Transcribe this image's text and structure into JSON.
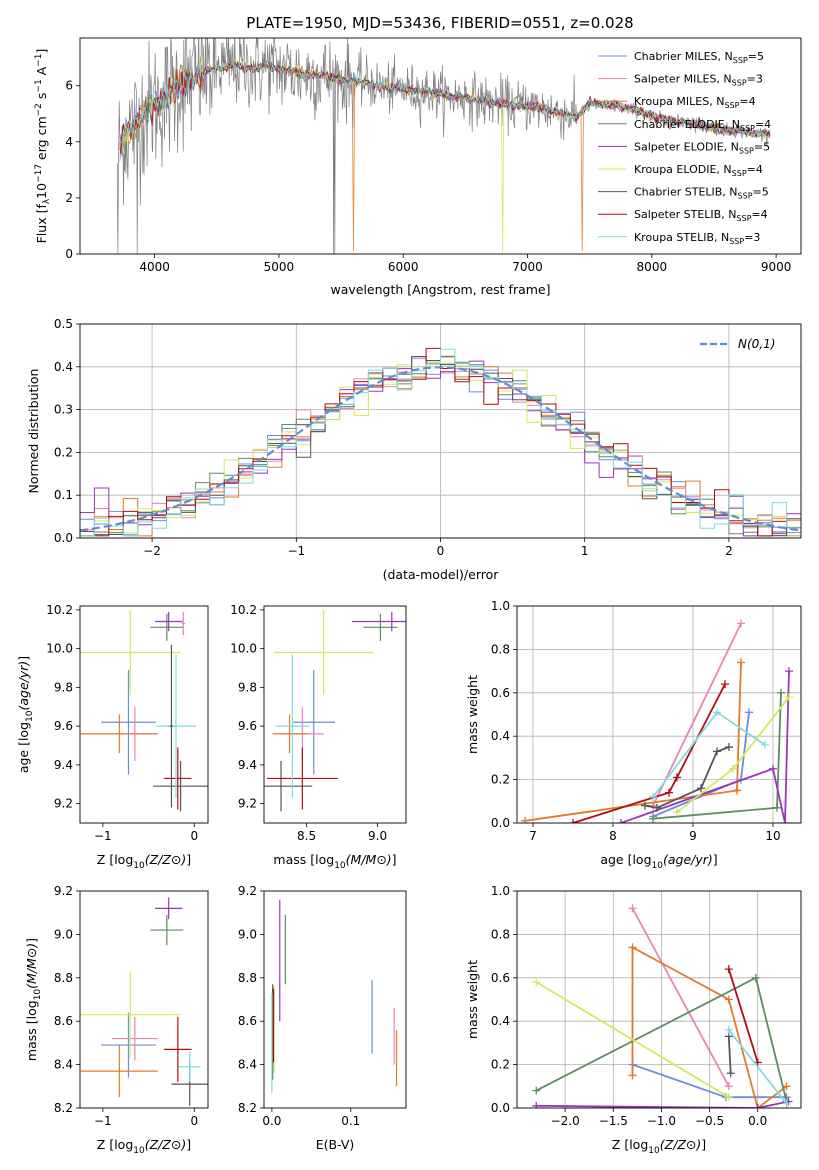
{
  "figure_title": "PLATE=1950, MJD=53436, FIBERID=0551, z=0.028",
  "colors": {
    "Chabrier MILES": "#6c8ed9",
    "Salpeter MILES": "#e585b9",
    "Kroupa MILES": "#e07b28",
    "Chabrier ELODIE": "#5e8c61",
    "Salpeter ELODIE": "#9b36b7",
    "Kroupa ELODIE": "#d3e95a",
    "Chabrier STELIB": "#555555",
    "Salpeter STELIB": "#b00d12",
    "Kroupa STELIB": "#7ddde0",
    "data": "#7f7f7f",
    "normal_curve": "#5b8ed6"
  },
  "chart_data": [
    {
      "type": "line",
      "panel": "spectrum",
      "title": "PLATE=1950, MJD=53436, FIBERID=0551, z=0.028",
      "xlabel": "wavelength [Angstrom, rest frame]",
      "ylabel": "Flux [f_λ 10^-17 erg cm^-2 s^-1 A^-1]",
      "xlim": [
        3400,
        9200
      ],
      "ylim": [
        0,
        7.7
      ],
      "xticks": [
        4000,
        5000,
        6000,
        7000,
        8000,
        9000
      ],
      "yticks": [
        0,
        2,
        4,
        6
      ],
      "legend": [
        {
          "label": "Chabrier MILES, N",
          "sub": "SSP",
          "n": "=5"
        },
        {
          "label": "Salpeter MILES, N",
          "sub": "SSP",
          "n": "=3"
        },
        {
          "label": "Kroupa MILES, N",
          "sub": "SSP",
          "n": "=4"
        },
        {
          "label": "Chabrier ELODIE, N",
          "sub": "SSP",
          "n": "=4"
        },
        {
          "label": "Salpeter ELODIE, N",
          "sub": "SSP",
          "n": "=5"
        },
        {
          "label": "Kroupa ELODIE, N",
          "sub": "SSP",
          "n": "=4"
        },
        {
          "label": "Chabrier STELIB, N",
          "sub": "SSP",
          "n": "=5"
        },
        {
          "label": "Salpeter STELIB, N",
          "sub": "SSP",
          "n": "=4"
        },
        {
          "label": "Kroupa STELIB, N",
          "sub": "SSP",
          "n": "=3"
        }
      ],
      "legend_placement": "upper right",
      "model_continuum": {
        "x": [
          3700,
          3750,
          3800,
          3850,
          3900,
          4000,
          4100,
          4200,
          4300,
          4400,
          4500,
          4600,
          4700,
          4800,
          4900,
          5000,
          5100,
          5200,
          5300,
          5400,
          5500,
          5600,
          5700,
          5800,
          5900,
          6000,
          6100,
          6200,
          6300,
          6400,
          6500,
          6600,
          6700,
          6800,
          6900,
          7000,
          7100,
          7200,
          7300,
          7400,
          7500,
          7600,
          7700,
          7800,
          7900,
          8000,
          8100,
          8200,
          8300,
          8400,
          8500,
          8600,
          8700,
          8800,
          8900
        ],
        "y": [
          3.6,
          4.2,
          4.4,
          4.6,
          5.0,
          5.3,
          5.6,
          6.1,
          6.2,
          6.5,
          6.6,
          6.7,
          6.7,
          6.6,
          6.7,
          6.6,
          6.5,
          6.4,
          6.4,
          6.3,
          6.2,
          6.2,
          6.1,
          6.0,
          5.9,
          5.9,
          5.8,
          5.8,
          5.7,
          5.6,
          5.6,
          5.5,
          5.4,
          5.4,
          5.3,
          5.3,
          5.2,
          5.1,
          5.0,
          4.9,
          5.4,
          5.3,
          5.3,
          5.2,
          5.1,
          4.9,
          4.8,
          4.7,
          4.7,
          4.6,
          4.5,
          4.4,
          4.4,
          4.3,
          4.3
        ]
      }
    },
    {
      "type": "line",
      "panel": "residual_histogram",
      "xlabel": "(data-model)/error",
      "ylabel": "Normed distribution",
      "xlim": [
        -2.5,
        2.5
      ],
      "ylim": [
        0,
        0.5
      ],
      "xticks": [
        -2,
        -1,
        0,
        1,
        2
      ],
      "yticks": [
        0.0,
        0.1,
        0.2,
        0.3,
        0.4,
        0.5
      ],
      "grid": true,
      "legend": [
        "N(0,1)"
      ],
      "legend_placement": "upper right",
      "bin_width": 0.1
    },
    {
      "type": "scatter",
      "panel": "age_vs_Z",
      "xlabel": "Z [log10(Z/Z⊙)]",
      "ylabel": "age  [log10(age/yr)]",
      "xlim": [
        -1.25,
        0.15
      ],
      "ylim": [
        9.1,
        10.22
      ],
      "xticks": [
        -1,
        0
      ],
      "yticks": [
        9.2,
        9.4,
        9.6,
        9.8,
        10.0,
        10.2
      ],
      "points": [
        {
          "series": "Chabrier MILES",
          "x": -0.72,
          "xerr": 0.3,
          "y": 9.62,
          "yerr": 0.27
        },
        {
          "series": "Salpeter MILES",
          "x": -0.65,
          "xerr": 0.25,
          "y": 9.56,
          "yerr": 0.14
        },
        {
          "series": "Kroupa MILES",
          "x": -0.82,
          "xerr": 0.42,
          "y": 9.56,
          "yerr": 0.1
        },
        {
          "series": "Chabrier ELODIE",
          "x": -0.3,
          "xerr": 0.18,
          "y": 10.11,
          "yerr": 0.07
        },
        {
          "series": "Salpeter ELODIE",
          "x": -0.28,
          "xerr": 0.15,
          "y": 10.14,
          "yerr": 0.05
        },
        {
          "series": "Kroupa ELODIE",
          "x": -0.7,
          "xerr": 0.55,
          "y": 9.98,
          "yerr": 0.22
        },
        {
          "series": "Chabrier STELIB",
          "x": -0.15,
          "xerr": 0.3,
          "y": 9.29,
          "yerr": 0.13
        },
        {
          "series": "Salpeter STELIB",
          "x": -0.18,
          "xerr": 0.15,
          "y": 9.33,
          "yerr": 0.16
        },
        {
          "series": "Kroupa STELIB",
          "x": -0.2,
          "xerr": 0.22,
          "y": 9.6,
          "yerr": 0.37
        },
        {
          "series": "Chabrier STELIB",
          "x": -0.25,
          "xerr": 0.02,
          "y": 9.6,
          "yerr": 0.42
        },
        {
          "series": "Salpeter MILES",
          "x": -0.12,
          "xerr": 0.02,
          "y": 10.13,
          "yerr": 0.06
        }
      ]
    },
    {
      "type": "scatter",
      "panel": "age_vs_mass",
      "xlabel": "mass [log10(M/M⊙)]",
      "ylabel": "",
      "xlim": [
        8.2,
        9.2
      ],
      "ylim": [
        9.1,
        10.22
      ],
      "xticks": [
        8.5,
        9.0
      ],
      "yticks": [
        9.2,
        9.4,
        9.6,
        9.8,
        10.0,
        10.2
      ],
      "points": [
        {
          "series": "Chabrier MILES",
          "x": 8.55,
          "xerr": 0.15,
          "y": 9.62,
          "yerr": 0.27
        },
        {
          "series": "Salpeter MILES",
          "x": 8.47,
          "xerr": 0.15,
          "y": 9.56,
          "yerr": 0.14
        },
        {
          "series": "Kroupa MILES",
          "x": 8.38,
          "xerr": 0.12,
          "y": 9.56,
          "yerr": 0.1
        },
        {
          "series": "Chabrier ELODIE",
          "x": 9.02,
          "xerr": 0.12,
          "y": 10.11,
          "yerr": 0.07
        },
        {
          "series": "Salpeter ELODIE",
          "x": 9.1,
          "xerr": 0.28,
          "y": 10.14,
          "yerr": 0.05
        },
        {
          "series": "Kroupa ELODIE",
          "x": 8.62,
          "xerr": 0.35,
          "y": 9.98,
          "yerr": 0.22
        },
        {
          "series": "Chabrier STELIB",
          "x": 8.32,
          "xerr": 0.22,
          "y": 9.29,
          "yerr": 0.13
        },
        {
          "series": "Salpeter STELIB",
          "x": 8.47,
          "xerr": 0.25,
          "y": 9.33,
          "yerr": 0.16
        },
        {
          "series": "Kroupa STELIB",
          "x": 8.4,
          "xerr": 0.12,
          "y": 9.6,
          "yerr": 0.37
        }
      ]
    },
    {
      "type": "line",
      "panel": "weight_vs_age",
      "xlabel": "age  [log10(age/yr)]",
      "ylabel": "mass weight",
      "xlim": [
        6.8,
        10.35
      ],
      "ylim": [
        0,
        1.0
      ],
      "xticks": [
        7,
        8,
        9,
        10
      ],
      "yticks": [
        0.0,
        0.2,
        0.4,
        0.6,
        0.8,
        1.0
      ],
      "grid": true,
      "series": [
        {
          "name": "Chabrier MILES",
          "x": [
            8.5,
            9.6,
            9.7
          ],
          "y": [
            0.03,
            0.2,
            0.51
          ]
        },
        {
          "name": "Salpeter MILES",
          "x": [
            8.5,
            9.6
          ],
          "y": [
            0.08,
            0.92
          ]
        },
        {
          "name": "Kroupa MILES",
          "x": [
            6.9,
            9.55,
            9.6,
            9.55
          ],
          "y": [
            0.01,
            0.15,
            0.74,
            0.15
          ]
        },
        {
          "name": "Chabrier ELODIE",
          "x": [
            8.5,
            10.05,
            10.1
          ],
          "y": [
            0.02,
            0.07,
            0.6
          ]
        },
        {
          "name": "Salpeter ELODIE",
          "x": [
            8.1,
            10.0,
            10.15,
            10.2
          ],
          "y": [
            0.0,
            0.25,
            0.0,
            0.7
          ]
        },
        {
          "name": "Kroupa ELODIE",
          "x": [
            8.8,
            9.5,
            10.2
          ],
          "y": [
            0.05,
            0.25,
            0.58
          ]
        },
        {
          "name": "Chabrier STELIB",
          "x": [
            8.4,
            8.55,
            9.1,
            9.3,
            9.45
          ],
          "y": [
            0.08,
            0.07,
            0.16,
            0.33,
            0.35
          ]
        },
        {
          "name": "Salpeter STELIB",
          "x": [
            7.5,
            8.7,
            8.8,
            9.4
          ],
          "y": [
            0.0,
            0.14,
            0.21,
            0.64
          ]
        },
        {
          "name": "Kroupa STELIB",
          "x": [
            8.5,
            9.3,
            9.9
          ],
          "y": [
            0.12,
            0.51,
            0.36
          ]
        }
      ]
    },
    {
      "type": "scatter",
      "panel": "mass_vs_Z",
      "xlabel": "Z [log10(Z/Z⊙)]",
      "ylabel": "mass [log10(M/M⊙)]",
      "xlim": [
        -1.25,
        0.15
      ],
      "ylim": [
        8.2,
        9.2
      ],
      "xticks": [
        -1,
        0
      ],
      "yticks": [
        8.2,
        8.4,
        8.6,
        8.8,
        9.0,
        9.2
      ],
      "points": [
        {
          "series": "Chabrier MILES",
          "x": -0.72,
          "xerr": 0.3,
          "y": 8.49,
          "yerr": 0.15
        },
        {
          "series": "Salpeter MILES",
          "x": -0.65,
          "xerr": 0.25,
          "y": 8.52,
          "yerr": 0.1
        },
        {
          "series": "Kroupa MILES",
          "x": -0.82,
          "xerr": 0.42,
          "y": 8.37,
          "yerr": 0.12
        },
        {
          "series": "Chabrier ELODIE",
          "x": -0.3,
          "xerr": 0.18,
          "y": 9.02,
          "yerr": 0.07
        },
        {
          "series": "Salpeter ELODIE",
          "x": -0.28,
          "xerr": 0.15,
          "y": 9.12,
          "yerr": 0.05
        },
        {
          "series": "Kroupa ELODIE",
          "x": -0.7,
          "xerr": 0.55,
          "y": 8.63,
          "yerr": 0.2
        },
        {
          "series": "Chabrier STELIB",
          "x": -0.05,
          "xerr": 0.2,
          "y": 8.31,
          "yerr": 0.1
        },
        {
          "series": "Salpeter STELIB",
          "x": -0.18,
          "xerr": 0.15,
          "y": 8.47,
          "yerr": 0.15
        },
        {
          "series": "Kroupa STELIB",
          "x": -0.05,
          "xerr": 0.12,
          "y": 8.39,
          "yerr": 0.07
        }
      ]
    },
    {
      "type": "scatter",
      "panel": "mass_vs_EBV",
      "xlabel": "E(B-V)",
      "ylabel": "",
      "xlim": [
        -0.01,
        0.17
      ],
      "ylim": [
        8.2,
        9.2
      ],
      "xticks": [
        0.0,
        0.1
      ],
      "yticks": [
        8.2,
        8.4,
        8.6,
        8.8,
        9.0,
        9.2
      ],
      "points": [
        {
          "series": "Chabrier MILES",
          "x": 0.127,
          "y": 8.62,
          "yerr": 0.17
        },
        {
          "series": "Salpeter MILES",
          "x": 0.155,
          "y": 8.53,
          "yerr": 0.13
        },
        {
          "series": "Kroupa MILES",
          "x": 0.158,
          "y": 8.43,
          "yerr": 0.13
        },
        {
          "series": "Chabrier ELODIE",
          "x": 0.017,
          "y": 8.93,
          "yerr": 0.16
        },
        {
          "series": "Salpeter ELODIE",
          "x": 0.01,
          "y": 8.88,
          "yerr": 0.28
        },
        {
          "series": "Kroupa ELODIE",
          "x": 0.003,
          "y": 8.56,
          "yerr": 0.2
        },
        {
          "series": "Chabrier STELIB",
          "x": 0.001,
          "y": 8.55,
          "yerr": 0.22
        },
        {
          "series": "Salpeter STELIB",
          "x": 0.002,
          "y": 8.58,
          "yerr": 0.17
        },
        {
          "series": "Kroupa STELIB",
          "x": 0.0,
          "y": 8.5,
          "yerr": 0.23
        }
      ]
    },
    {
      "type": "line",
      "panel": "weight_vs_Z",
      "xlabel": "Z [log10(Z/Z⊙)]",
      "ylabel": "mass weight",
      "xlim": [
        -2.5,
        0.45
      ],
      "ylim": [
        0,
        1.0
      ],
      "xticks": [
        -2.0,
        -1.5,
        -1.0,
        -0.5,
        0.0
      ],
      "yticks": [
        0.0,
        0.2,
        0.4,
        0.6,
        0.8,
        1.0
      ],
      "grid": true,
      "series": [
        {
          "name": "Chabrier MILES",
          "x": [
            -1.3,
            -0.33,
            0.3
          ],
          "y": [
            0.2,
            0.05,
            0.05
          ]
        },
        {
          "name": "Salpeter MILES",
          "x": [
            -1.3,
            -0.3
          ],
          "y": [
            0.92,
            0.1
          ]
        },
        {
          "name": "Kroupa MILES",
          "x": [
            -1.3,
            -1.3,
            -0.3,
            0.0,
            0.3
          ],
          "y": [
            0.15,
            0.74,
            0.5,
            0.0,
            0.1
          ]
        },
        {
          "name": "Chabrier ELODIE",
          "x": [
            -2.3,
            -0.02,
            0.3
          ],
          "y": [
            0.08,
            0.6,
            0.03
          ]
        },
        {
          "name": "Salpeter ELODIE",
          "x": [
            -2.3,
            0.0,
            0.32
          ],
          "y": [
            0.01,
            0.0,
            0.03
          ]
        },
        {
          "name": "Kroupa ELODIE",
          "x": [
            -2.3,
            -0.3
          ],
          "y": [
            0.58,
            0.05
          ]
        },
        {
          "name": "Chabrier STELIB",
          "x": [
            -0.3,
            -0.28
          ],
          "y": [
            0.33,
            0.16
          ]
        },
        {
          "name": "Salpeter STELIB",
          "x": [
            -0.3,
            0.0
          ],
          "y": [
            0.64,
            0.21
          ]
        },
        {
          "name": "Kroupa STELIB",
          "x": [
            -0.3,
            0.3
          ],
          "y": [
            0.36,
            0.02
          ]
        }
      ]
    }
  ]
}
